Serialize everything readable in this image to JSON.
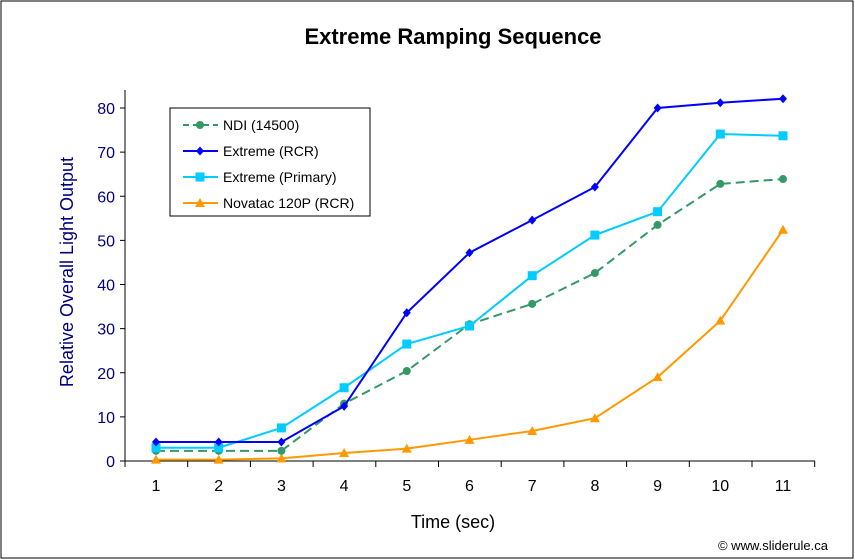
{
  "chart_data": {
    "type": "line",
    "title": "Extreme Ramping Sequence",
    "xlabel": "Time (sec)",
    "ylabel": "Relative Overall Light Output",
    "x": [
      1,
      2,
      3,
      4,
      5,
      6,
      7,
      8,
      9,
      10,
      11
    ],
    "ylim": [
      0,
      80
    ],
    "yticks": [
      0,
      10,
      20,
      30,
      40,
      50,
      60,
      70,
      80
    ],
    "grid": false,
    "legend": "top-left",
    "series": [
      {
        "name": "NDI (14500)",
        "color": "#339966",
        "marker": "circle",
        "dash": true,
        "values": [
          2.3,
          2.3,
          2.3,
          13,
          20.4,
          31,
          35.6,
          42.6,
          53.5,
          62.8,
          63.9
        ]
      },
      {
        "name": "Extreme (RCR)",
        "color": "#0000ff",
        "marker": "diamond",
        "dash": false,
        "values": [
          4.3,
          4.3,
          4.3,
          12.4,
          33.6,
          47.2,
          54.6,
          62.1,
          80,
          81.2,
          82.1
        ]
      },
      {
        "name": "Extreme (Primary)",
        "color": "#00ccff",
        "marker": "square",
        "dash": false,
        "values": [
          3,
          3,
          7.5,
          16.6,
          26.5,
          30.6,
          42,
          51.2,
          56.5,
          74.1,
          73.7
        ]
      },
      {
        "name": "Novatac 120P (RCR)",
        "color": "#ff9900",
        "marker": "triangle",
        "dash": false,
        "values": [
          0.3,
          0.3,
          0.6,
          1.8,
          2.8,
          4.8,
          6.8,
          9.7,
          19,
          31.8,
          52.4
        ]
      }
    ]
  },
  "footer": "© www.sliderule.ca"
}
